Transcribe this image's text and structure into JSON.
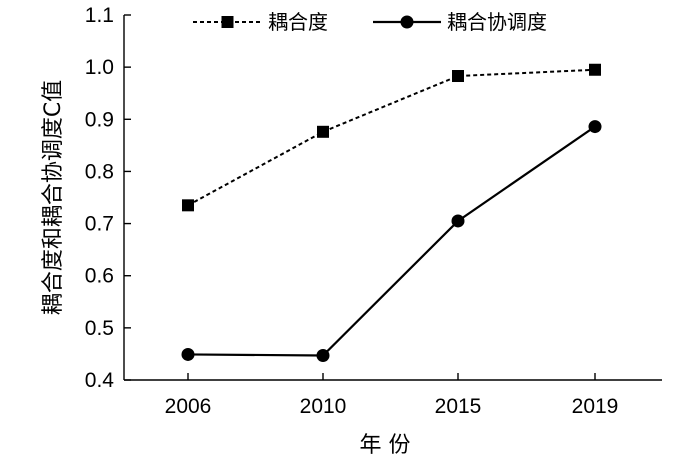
{
  "chart_data": {
    "type": "line",
    "x": [
      "2006",
      "2010",
      "2015",
      "2019"
    ],
    "xlabel": "年 份",
    "ylabel": "耦合度和耦合协调度C值",
    "ylim": [
      0.4,
      1.1
    ],
    "yticks": [
      "0.4",
      "0.5",
      "0.6",
      "0.7",
      "0.8",
      "0.9",
      "1.0",
      "1.1"
    ],
    "grid": false,
    "legend_position": "top",
    "series": [
      {
        "name": "耦合度",
        "values": [
          0.735,
          0.876,
          0.983,
          0.995
        ],
        "marker": "square",
        "line": "dotted",
        "color": "#000000"
      },
      {
        "name": "耦合协调度",
        "values": [
          0.449,
          0.447,
          0.705,
          0.886
        ],
        "marker": "circle",
        "line": "solid",
        "color": "#000000"
      }
    ]
  }
}
